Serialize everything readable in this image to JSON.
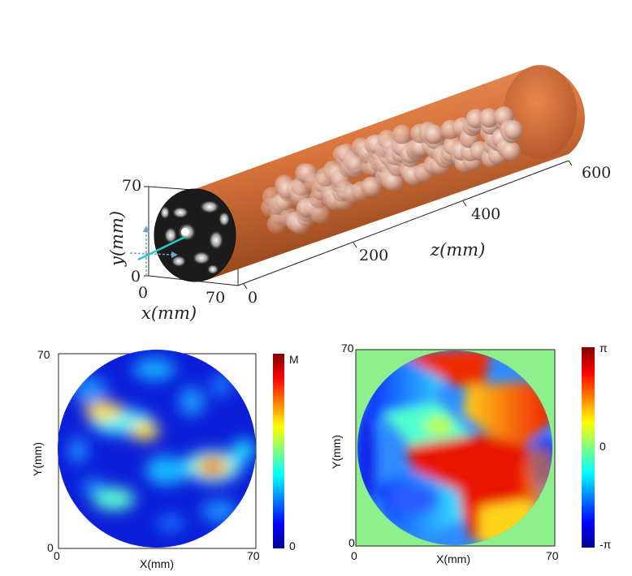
{
  "top_view": {
    "ylabel": "y(mm)",
    "xlabel": "x(mm)",
    "zlabel": "z(mm)",
    "y_ticks": [
      "70",
      "0"
    ],
    "x_ticks": [
      "0",
      "70"
    ],
    "z_ticks": [
      "0",
      "200",
      "400",
      "600"
    ]
  },
  "amplitude_map": {
    "ylabel": "Y(mm)",
    "xlabel": "X(mm)",
    "y_ticks": [
      "70",
      "0"
    ],
    "x_ticks": [
      "0",
      "70"
    ],
    "colorbar_ticks": [
      "M",
      "0"
    ],
    "colormap": "jet"
  },
  "phase_map": {
    "ylabel": "Y(mm)",
    "xlabel": "X(mm)",
    "y_ticks": [
      "70",
      "0"
    ],
    "x_ticks": [
      "0",
      "70"
    ],
    "colorbar_ticks": [
      "π",
      "0",
      "-π"
    ],
    "colormap": "jet",
    "background": "#8cf08c"
  }
}
